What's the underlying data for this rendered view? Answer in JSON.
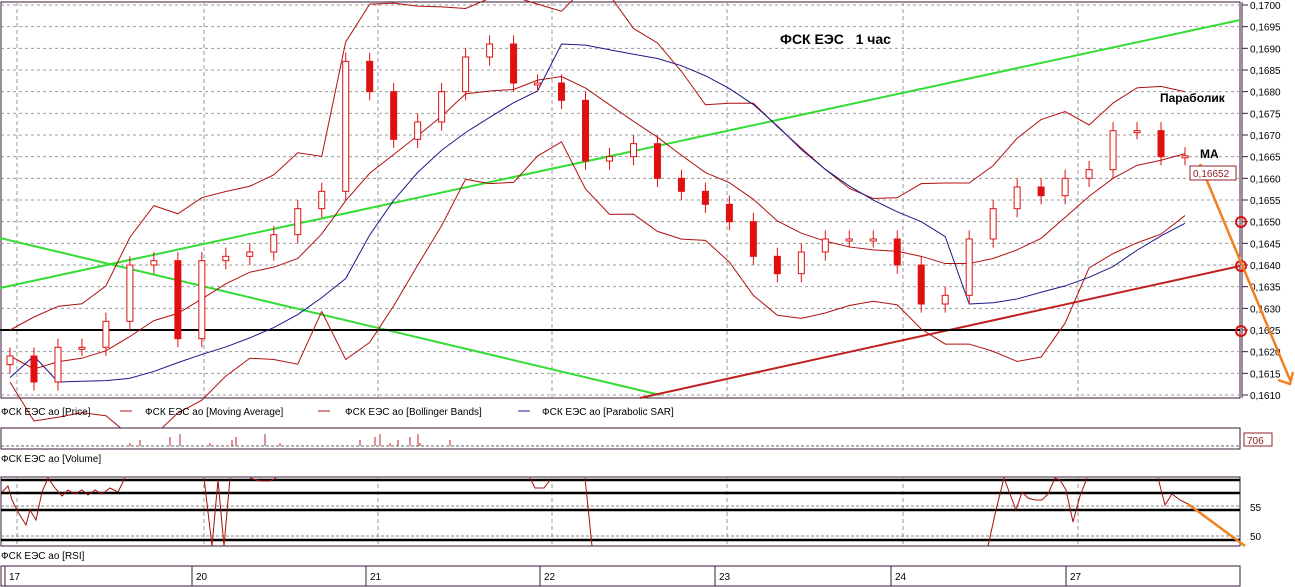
{
  "chart_data": {
    "type": "candlestick",
    "title": "ФСК ЕЭС   1 час",
    "annotations": [
      "Параболик",
      "MA"
    ],
    "current_price": "0,16652",
    "ylim": [
      0.161,
      0.17
    ],
    "y_ticks": [
      "0,1700",
      "0,1695",
      "0,1690",
      "0,1685",
      "0,1680",
      "0,1675",
      "0,1670",
      "0,1665",
      "0,1660",
      "0,1655",
      "0,1650",
      "0,1645",
      "0,1640",
      "0,1635",
      "0,1630",
      "0,1625",
      "0,1620",
      "0,1615",
      "0,1610"
    ],
    "x_ticks": [
      "17",
      "20",
      "21",
      "22",
      "23",
      "24",
      "27"
    ],
    "close": [
      0.1619,
      0.1613,
      0.1621,
      0.1621,
      0.1627,
      0.164,
      0.1641,
      0.1623,
      0.1641,
      0.1642,
      0.1643,
      0.1647,
      0.1653,
      0.1657,
      0.1687,
      0.168,
      0.1669,
      0.1673,
      0.168,
      0.1688,
      0.1691,
      0.1682,
      0.1682,
      0.1678,
      0.1664,
      0.1665,
      0.1668,
      0.166,
      0.1657,
      0.1654,
      0.165,
      0.1642,
      0.1638,
      0.1643,
      0.1646,
      0.1646,
      0.1646,
      0.164,
      0.1631,
      0.1633,
      0.1646,
      0.1653,
      0.1658,
      0.1656,
      0.166,
      0.1662,
      0.1671,
      0.1671,
      0.1665,
      0.16652
    ],
    "legend": [
      "ФСК ЕЭС ао [Price]",
      "ФСК ЕЭС ао [Moving Average]",
      "ФСК ЕЭС ао [Bollinger Bands]",
      "ФСК ЕЭС ао [Parabolic SAR]"
    ],
    "horizontal_level": 0.1625,
    "grid": true,
    "colors": {
      "candle": "#e01010",
      "ma": "#b01010",
      "bands": "#b01010",
      "sar": "#1a1a8a",
      "trend_up": "#33dd33",
      "support": "#c02020",
      "arrow": "#f08020"
    }
  },
  "volume": {
    "label": "ФСК ЕЭС ао [Volume]",
    "value": "706"
  },
  "rsi": {
    "label": "ФСК ЕЭС ао [RSI]",
    "ticks": [
      "55",
      "50"
    ]
  }
}
